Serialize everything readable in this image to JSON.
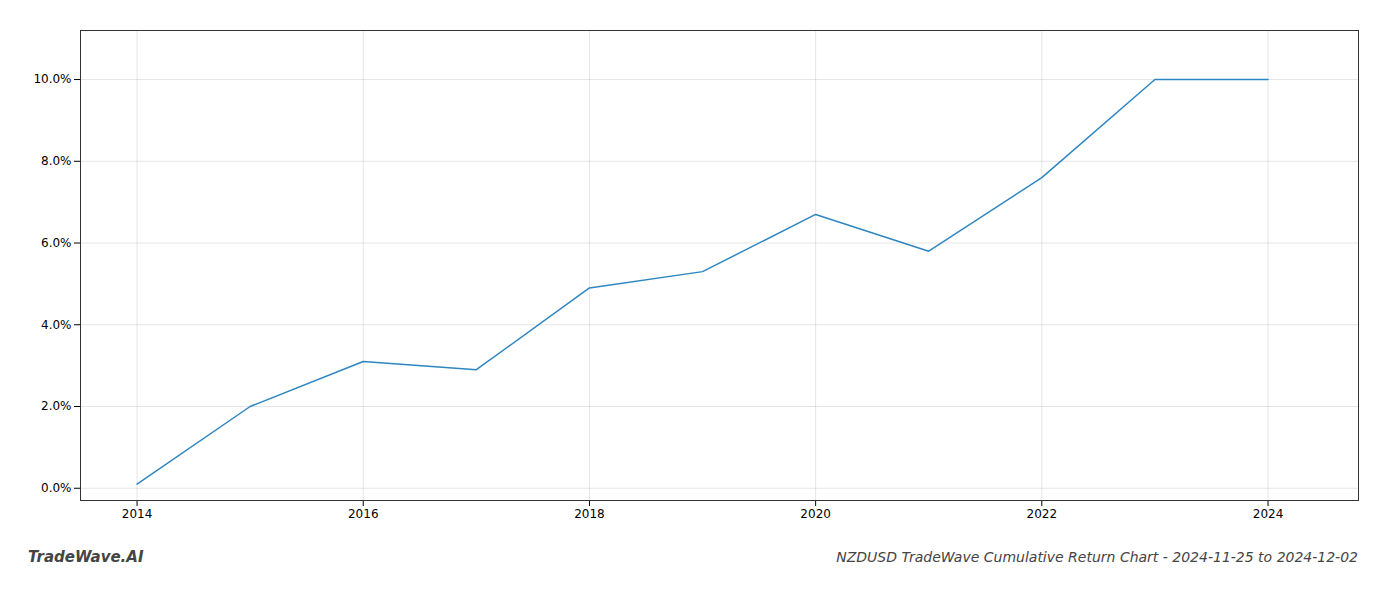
{
  "chart_data": {
    "type": "line",
    "title": "NZDUSD TradeWave Cumulative Return Chart - 2024-11-25 to 2024-12-02",
    "annotations": [
      "TradeWave.AI"
    ],
    "x": [
      2014,
      2015,
      2016,
      2017,
      2018,
      2019,
      2020,
      2021,
      2022,
      2023,
      2024
    ],
    "values": [
      0.001,
      0.02,
      0.031,
      0.029,
      0.049,
      0.053,
      0.067,
      0.058,
      0.076,
      0.1,
      0.1
    ],
    "color": "#2E86C1",
    "xlim": [
      2013.5,
      2024.8
    ],
    "xticks": [
      2014,
      2016,
      2018,
      2020,
      2022,
      2024
    ],
    "ylim": [
      -0.003,
      0.112
    ],
    "yticks": [
      {
        "value": 0.0,
        "label": "0.0%"
      },
      {
        "value": 0.02,
        "label": "2.0%"
      },
      {
        "value": 0.04,
        "label": "4.0%"
      },
      {
        "value": 0.06,
        "label": "6.0%"
      },
      {
        "value": 0.08,
        "label": "8.0%"
      },
      {
        "value": 0.1,
        "label": "10.0%"
      }
    ],
    "grid": true
  }
}
